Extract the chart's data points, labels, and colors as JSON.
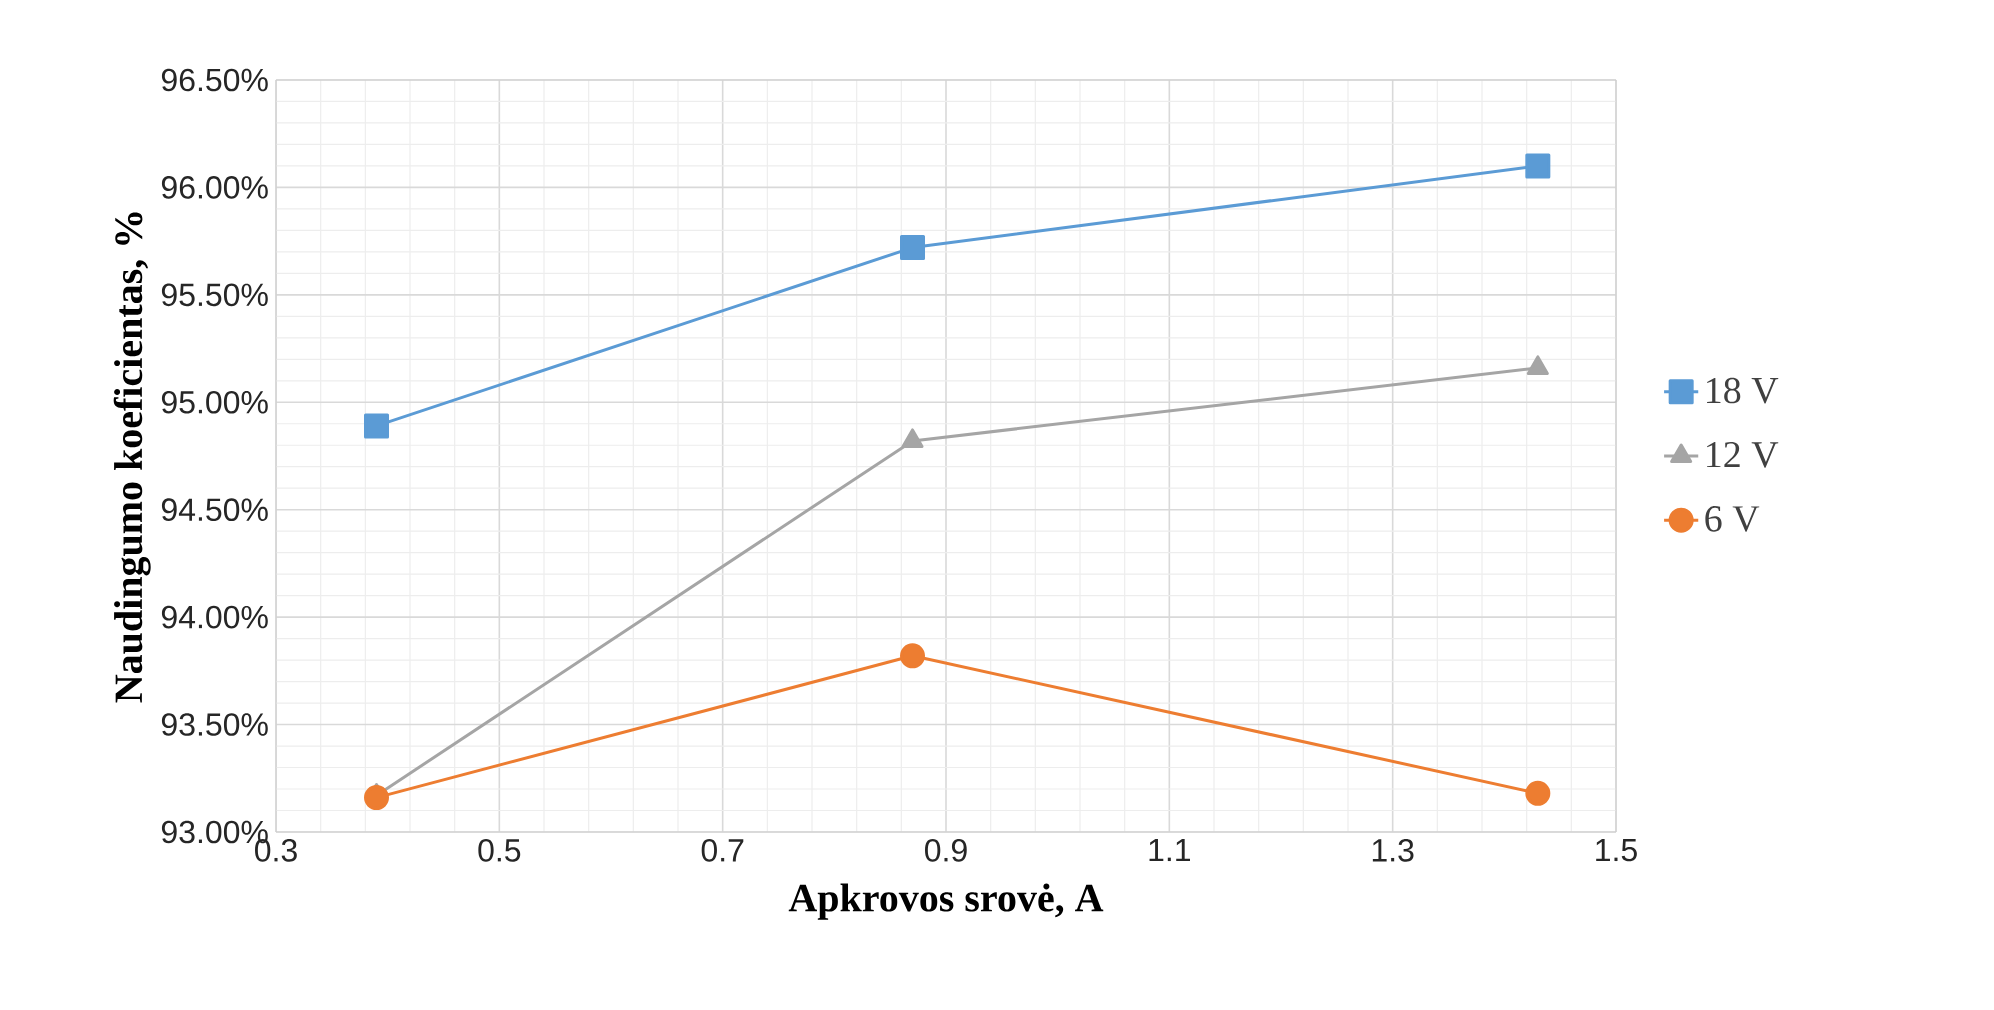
{
  "chart_data": {
    "type": "line",
    "xlabel": "Apkrovos srovė, A",
    "ylabel": "Naudingumo koeficientas, %",
    "x": [
      0.39,
      0.87,
      1.43
    ],
    "series": [
      {
        "name": "18 V",
        "color": "#5b9bd5",
        "marker": "square",
        "values": [
          94.89,
          95.72,
          96.1
        ]
      },
      {
        "name": "12 V",
        "color": "#a5a5a5",
        "marker": "triangle",
        "values": [
          93.17,
          94.82,
          95.16
        ]
      },
      {
        "name": "6 V",
        "color": "#ed7d31",
        "marker": "circle",
        "values": [
          93.16,
          93.82,
          93.18
        ]
      }
    ],
    "xlim": [
      0.3,
      1.5
    ],
    "xticks": [
      0.3,
      0.5,
      0.7,
      0.9,
      1.1,
      1.3,
      1.5
    ],
    "ylim": [
      93.0,
      96.5
    ],
    "yticks": [
      {
        "value": 93.0,
        "label": "93.00%"
      },
      {
        "value": 93.5,
        "label": "93.50%"
      },
      {
        "value": 94.0,
        "label": "94.00%"
      },
      {
        "value": 94.5,
        "label": "94.50%"
      },
      {
        "value": 95.0,
        "label": "95.00%"
      },
      {
        "value": 95.5,
        "label": "95.50%"
      },
      {
        "value": 96.0,
        "label": "96.00%"
      },
      {
        "value": 96.5,
        "label": "96.50%"
      }
    ],
    "grid": true,
    "legend": "right",
    "line_style": "solid"
  }
}
